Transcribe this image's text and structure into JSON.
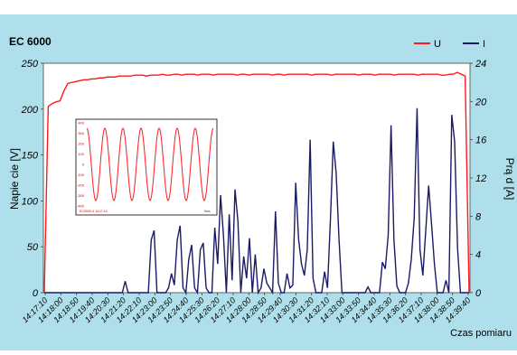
{
  "chart_data": {
    "type": "line",
    "title": "EC 6000",
    "xlabel": "Czas pomiaru",
    "ylabel_left": "Napie cie [V]",
    "ylabel_right": "Prą d [A]",
    "ylim_left": [
      0,
      250
    ],
    "ylim_right": [
      0,
      24
    ],
    "yticks_left": [
      "0",
      "50",
      "100",
      "150",
      "200",
      "250"
    ],
    "yticks_right": [
      "0",
      "4",
      "8",
      "12",
      "16",
      "20",
      "24"
    ],
    "x_tick_labels": [
      "14:17:10",
      "14:18:00",
      "14:18:50",
      "14:19:40",
      "14:20:30",
      "14:21:20",
      "14:22:10",
      "14:23:00",
      "14:23:50",
      "14:24:40",
      "14:25:30",
      "14:26:20",
      "14:27:10",
      "14:28:00",
      "14:28:50",
      "14:29:40",
      "14:30:30",
      "14:31:20",
      "14:32:10",
      "14:33:00",
      "14:33:50",
      "14:34:40",
      "14:35:30",
      "14:36:20",
      "14:37:10",
      "14:38:00",
      "14:38:50",
      "14:39:40"
    ],
    "legend_position": "top-right",
    "grid": false,
    "series": [
      {
        "name": "U",
        "axis": "left",
        "color": "#ff1a1a",
        "values": [
          0,
          203,
          206,
          208,
          209,
          220,
          228,
          229,
          230,
          231,
          232,
          232,
          233,
          233,
          234,
          234,
          235,
          235,
          235,
          236,
          236,
          236,
          236,
          237,
          237,
          237,
          236,
          237,
          237,
          237,
          238,
          237,
          237,
          238,
          238,
          237,
          238,
          238,
          238,
          237,
          238,
          238,
          238,
          237,
          238,
          238,
          238,
          238,
          238,
          237,
          238,
          238,
          237,
          238,
          238,
          238,
          238,
          238,
          237,
          238,
          238,
          237,
          238,
          238,
          238,
          238,
          238,
          238,
          237,
          238,
          238,
          238,
          238,
          237,
          238,
          238,
          238,
          238,
          238,
          238,
          237,
          238,
          238,
          238,
          237,
          238,
          238,
          238,
          238,
          237,
          238,
          238,
          238,
          238,
          238,
          237,
          238,
          238,
          238,
          238,
          238,
          237,
          237,
          238,
          238,
          240,
          238,
          236,
          0
        ]
      },
      {
        "name": "I",
        "axis": "right",
        "color": "#1a1a66",
        "values": [
          0,
          0,
          0,
          0,
          0,
          0,
          0,
          0,
          0,
          0,
          0,
          0,
          0,
          0,
          0,
          0,
          0,
          0,
          0,
          0,
          0,
          0,
          0,
          0,
          0,
          0,
          0,
          0,
          1.2,
          0,
          0,
          0,
          0,
          0,
          0,
          0,
          0,
          5.5,
          6.5,
          0,
          0,
          0,
          0,
          0.5,
          2,
          0.8,
          5.5,
          7,
          0.5,
          0,
          3.5,
          5,
          0.5,
          0,
          4.5,
          5.2,
          0.5,
          0,
          0,
          6.8,
          3,
          10.2,
          6,
          0,
          8.2,
          1.3,
          10.8,
          7.5,
          0,
          3.8,
          1.5,
          5.7,
          0,
          4,
          0,
          0.5,
          2.5,
          1,
          0.5,
          0,
          8.5,
          1,
          0,
          0,
          2,
          0.5,
          0.8,
          11.5,
          5.6,
          3,
          1.8,
          4.5,
          16,
          1.5,
          0,
          0,
          0,
          2.2,
          0.5,
          7.5,
          15.8,
          12.5,
          5.5,
          0,
          0,
          0,
          0,
          0,
          0,
          0,
          0,
          0,
          0.6,
          0,
          0,
          0,
          0,
          3.2,
          2.5,
          6,
          17.5,
          5.5,
          0.7,
          0,
          0,
          0,
          1,
          3.5,
          7.8,
          19.3,
          4.5,
          1.8,
          6.5,
          11.2,
          7.2,
          3,
          0,
          0,
          0,
          1.3,
          0,
          18.6,
          15.8,
          4.7,
          0,
          0,
          0,
          0
        ]
      }
    ],
    "inset": {
      "type": "line",
      "description_series": "sinusoid",
      "cycles": 7,
      "color": "#ff1a1a",
      "y_tick_labels": [
        "400",
        "300",
        "200",
        "100",
        "0",
        "-100",
        "-200",
        "-300",
        "-400"
      ],
      "footer_left": "EC6000 U 14:17:10",
      "footer_right": "5ms"
    }
  }
}
